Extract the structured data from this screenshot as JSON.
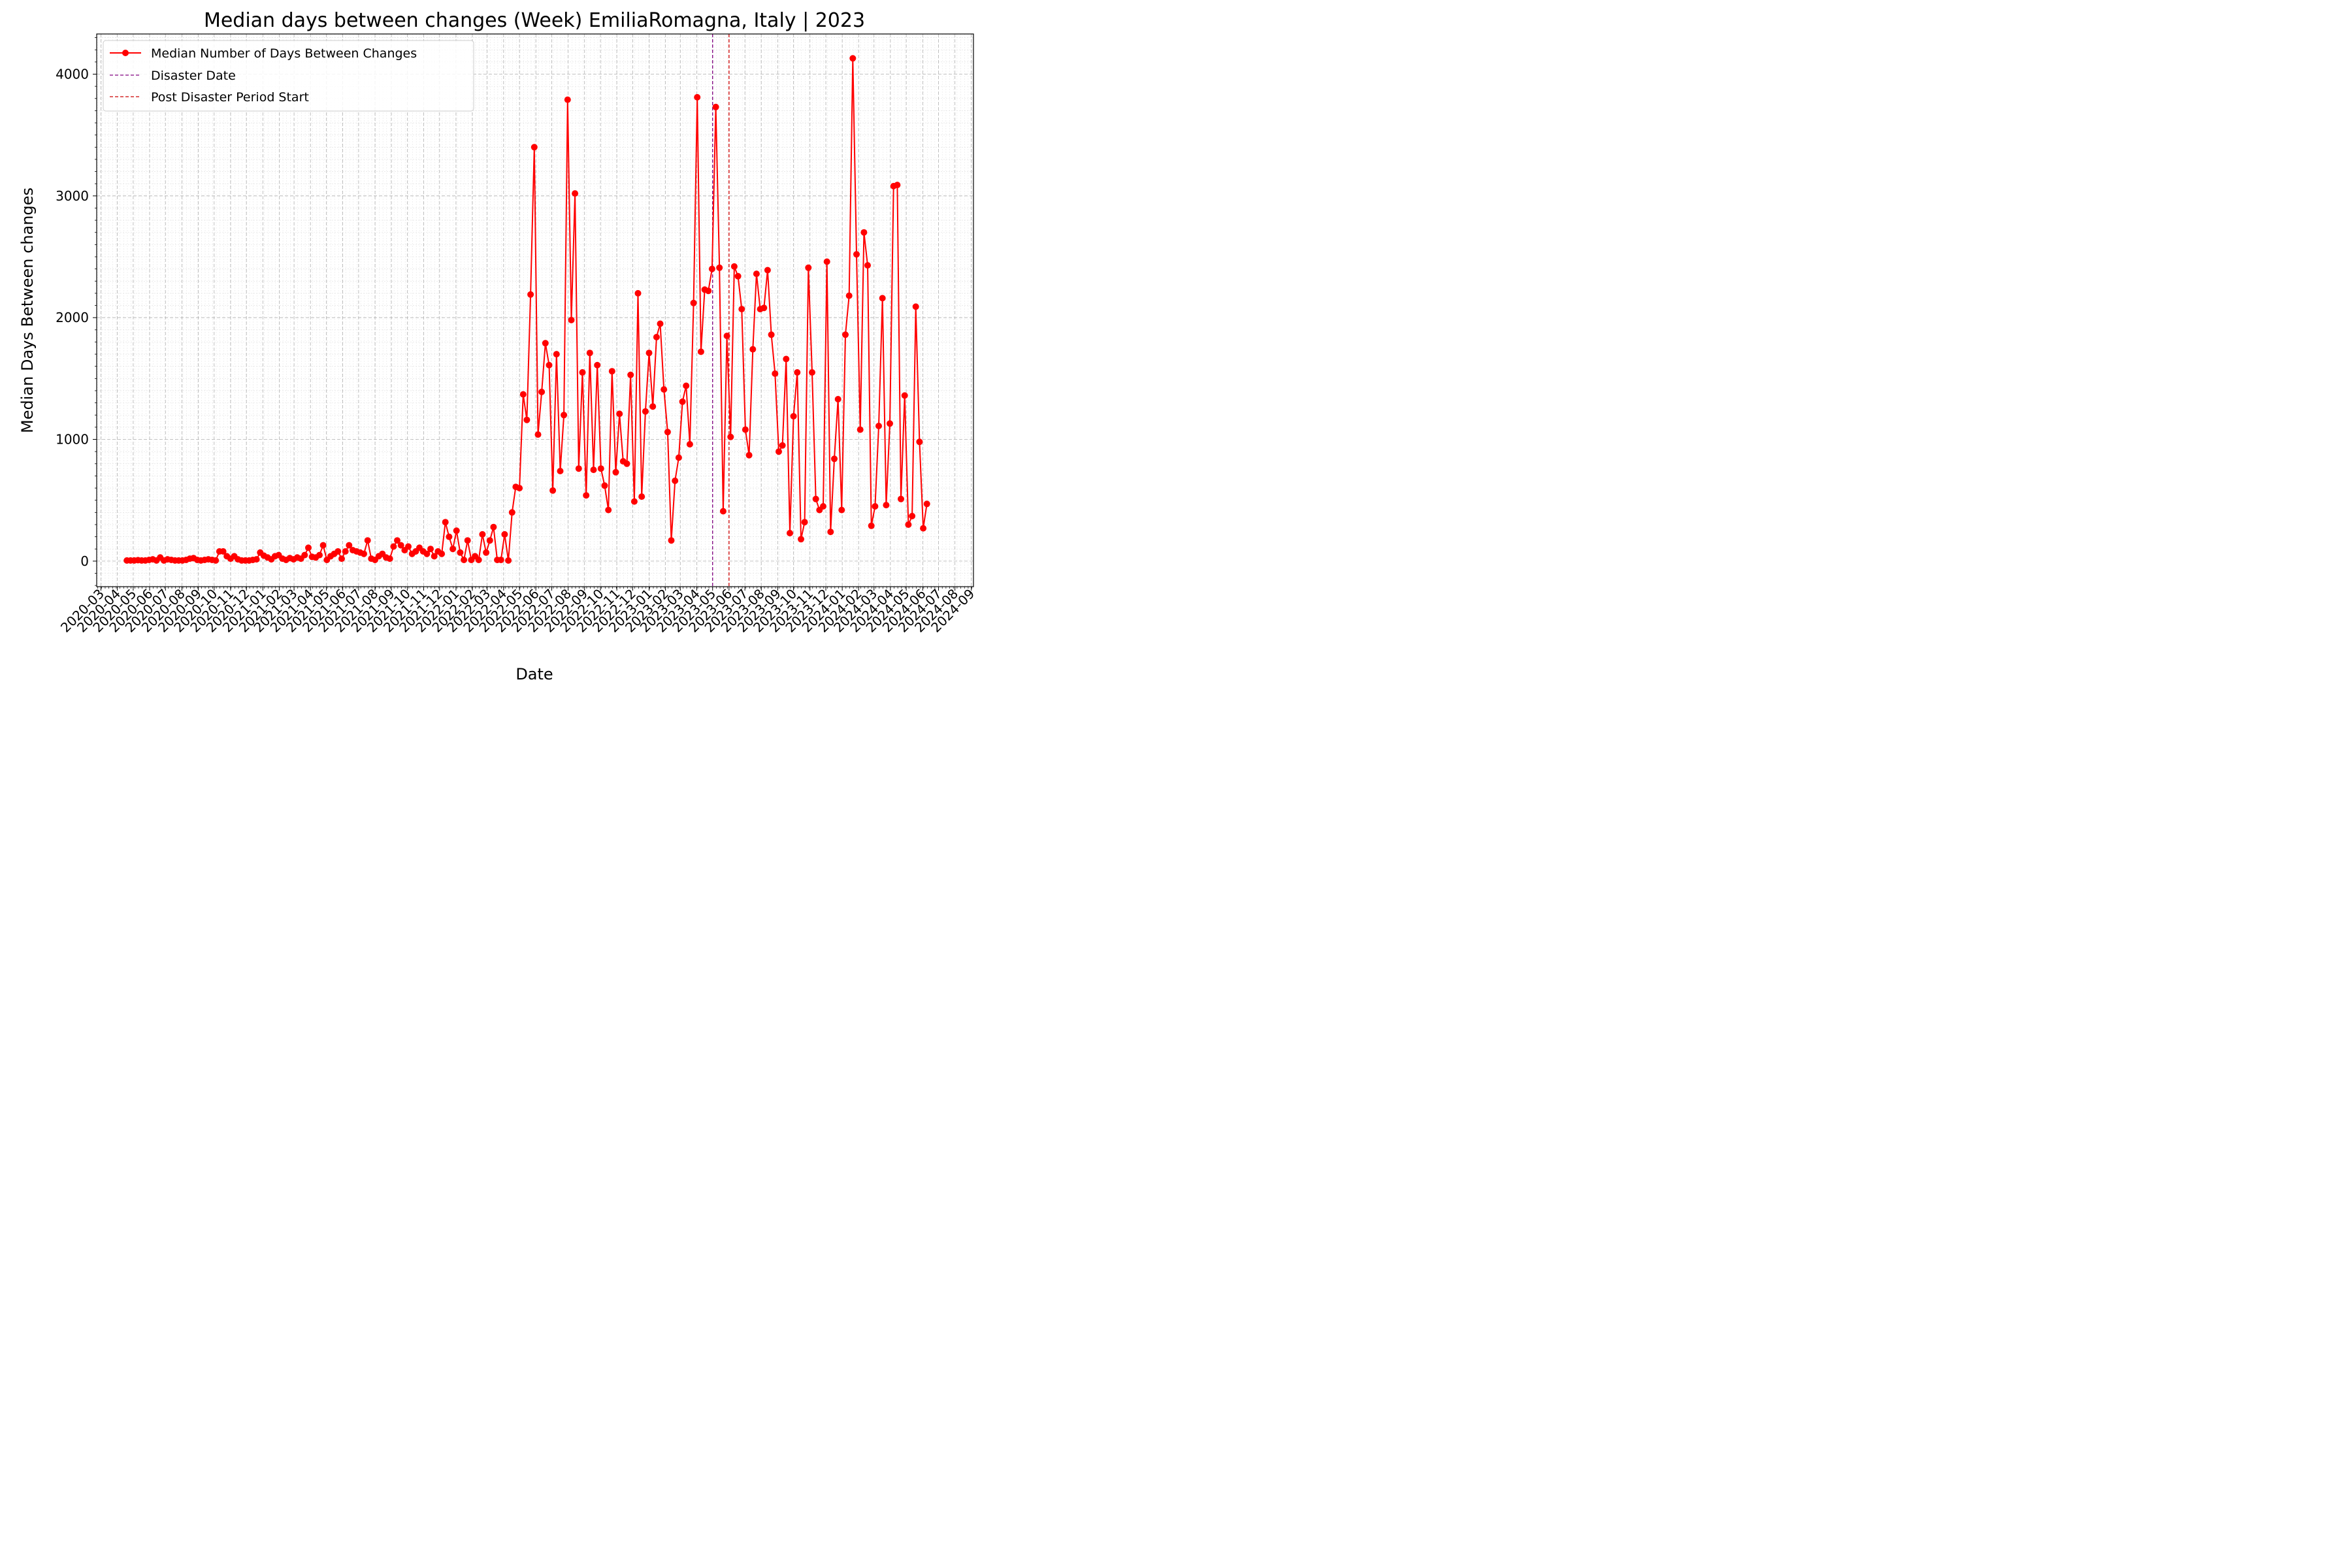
{
  "chart_data": {
    "type": "line",
    "title": "Median days between changes (Week) EmiliaRomagna, Italy | 2023",
    "xlabel": "Date",
    "ylabel": "Median Days Between changes",
    "xlim": [
      "2020-02-22",
      "2024-09-05"
    ],
    "ylim": [
      -210,
      4330
    ],
    "yticks": [
      0,
      1000,
      2000,
      3000,
      4000
    ],
    "xticks": [
      "2020-03",
      "2020-04",
      "2020-05",
      "2020-06",
      "2020-07",
      "2020-08",
      "2020-09",
      "2020-10",
      "2020-11",
      "2020-12",
      "2021-01",
      "2021-02",
      "2021-03",
      "2021-04",
      "2021-05",
      "2021-06",
      "2021-07",
      "2021-08",
      "2021-09",
      "2021-10",
      "2021-11",
      "2021-12",
      "2022-01",
      "2022-02",
      "2022-03",
      "2022-04",
      "2022-05",
      "2022-06",
      "2022-07",
      "2022-08",
      "2022-09",
      "2022-10",
      "2022-11",
      "2022-12",
      "2023-01",
      "2023-02",
      "2023-03",
      "2023-04",
      "2023-05",
      "2023-06",
      "2023-07",
      "2023-08",
      "2023-09",
      "2023-10",
      "2023-11",
      "2023-12",
      "2024-01",
      "2024-02",
      "2024-03",
      "2024-04",
      "2024-05",
      "2024-06",
      "2024-07",
      "2024-08",
      "2024-09"
    ],
    "grid": true,
    "legend_position": "upper-left",
    "series": [
      {
        "name": "Median Number of Days Between Changes",
        "color": "#ff0000",
        "marker": "circle",
        "start_date": "2020-04-19",
        "interval_days": 7,
        "values": [
          5,
          5,
          5,
          8,
          5,
          5,
          10,
          15,
          5,
          30,
          5,
          15,
          10,
          5,
          5,
          5,
          10,
          20,
          25,
          10,
          5,
          10,
          15,
          10,
          5,
          80,
          80,
          40,
          20,
          40,
          15,
          5,
          5,
          5,
          10,
          15,
          70,
          45,
          30,
          15,
          40,
          50,
          20,
          10,
          25,
          15,
          30,
          20,
          50,
          110,
          35,
          30,
          50,
          130,
          10,
          40,
          60,
          80,
          20,
          80,
          130,
          90,
          80,
          70,
          60,
          170,
          20,
          10,
          40,
          60,
          30,
          20,
          120,
          170,
          130,
          90,
          120,
          60,
          80,
          110,
          80,
          60,
          100,
          40,
          80,
          60,
          320,
          200,
          100,
          250,
          70,
          10,
          170,
          10,
          40,
          10,
          220,
          70,
          170,
          280,
          10,
          10,
          220,
          5,
          400,
          610,
          600,
          1370,
          1160,
          2190,
          3400,
          1040,
          1390,
          1790,
          1610,
          580,
          1700,
          740,
          1200,
          3790,
          1980,
          3020,
          760,
          1550,
          540,
          1710,
          750,
          1610,
          760,
          620,
          420,
          1560,
          730,
          1210,
          820,
          800,
          1530,
          490,
          2200,
          530,
          1230,
          1710,
          1270,
          1840,
          1950,
          1410,
          1060,
          170,
          660,
          850,
          1310,
          1440,
          960,
          2120,
          3810,
          1720,
          2230,
          2220,
          2400,
          3730,
          2410,
          410,
          1850,
          1020,
          2420,
          2340,
          2070,
          1080,
          870,
          1740,
          2360,
          2070,
          2080,
          2390,
          1860,
          1540,
          900,
          950,
          1660,
          230,
          1190,
          1550,
          180,
          320,
          2410,
          1550,
          510,
          420,
          450,
          2460,
          240,
          840,
          1330,
          420,
          1860,
          2180,
          4130,
          2520,
          1080,
          2700,
          2430,
          290,
          450,
          1110,
          2160,
          460,
          1130,
          3080,
          3090,
          510,
          1360,
          300,
          370,
          2090,
          980,
          270,
          470
        ]
      }
    ],
    "vlines": [
      {
        "name": "Disaster Date",
        "date": "2023-05-01",
        "color": "#800080",
        "style": "dashed"
      },
      {
        "name": "Post Disaster Period Start",
        "date": "2023-06-01",
        "color": "#cc0000",
        "style": "dashed"
      }
    ]
  }
}
